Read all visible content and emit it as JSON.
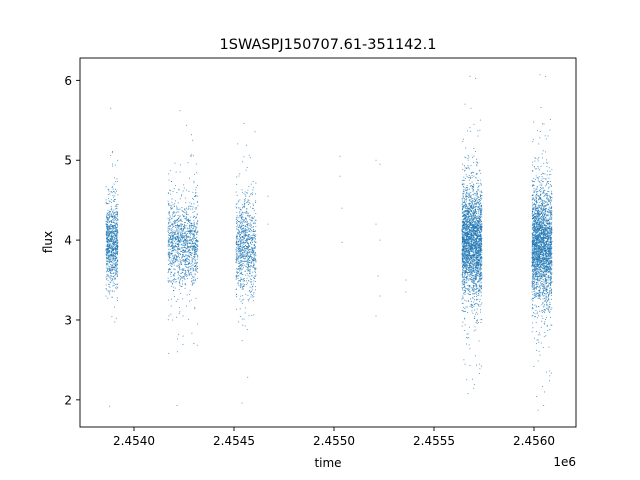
{
  "chart_data": {
    "type": "scatter",
    "title": "1SWASPJ150707.61-351142.1",
    "xlabel": "time",
    "ylabel": "flux",
    "x_offset_label": "1e6",
    "xlim": [
      2.45373,
      2.45621
    ],
    "ylim": [
      1.66,
      6.28
    ],
    "x_ticks": [
      2.454,
      2.4545,
      2.455,
      2.4555,
      2.456
    ],
    "x_tick_labels": [
      "2.4540",
      "2.4545",
      "2.4550",
      "2.4555",
      "2.4560"
    ],
    "y_ticks": [
      2,
      3,
      4,
      5,
      6
    ],
    "y_tick_labels": [
      "2",
      "3",
      "4",
      "5",
      "6"
    ],
    "grid": false,
    "marker_color": "#1f77b4",
    "series": [
      {
        "x_units": "1e6",
        "clusters": [
          {
            "x_range": [
              2.45386,
              2.45392
            ],
            "center": 3.97,
            "spread": 0.25,
            "min": 1.92,
            "max": 5.65,
            "count": 900
          },
          {
            "x_range": [
              2.45417,
              2.45432
            ],
            "center": 3.95,
            "spread": 0.27,
            "min": 1.93,
            "max": 5.62,
            "count": 1200
          },
          {
            "x_range": [
              2.45451,
              2.45461
            ],
            "center": 3.93,
            "spread": 0.28,
            "min": 1.96,
            "max": 5.46,
            "count": 900
          },
          {
            "x_range": [
              2.45564,
              2.45574
            ],
            "center": 3.97,
            "spread": 0.33,
            "min": 2.08,
            "max": 6.05,
            "count": 2600
          },
          {
            "x_range": [
              2.45599,
              2.45609
            ],
            "center": 3.93,
            "spread": 0.34,
            "min": 1.87,
            "max": 6.07,
            "count": 2600
          }
        ],
        "sparse_points": [
          [
            2.45503,
            5.05
          ],
          [
            2.45503,
            4.8
          ],
          [
            2.45504,
            3.97
          ],
          [
            2.45504,
            4.4
          ],
          [
            2.45521,
            5.0
          ],
          [
            2.45521,
            4.2
          ],
          [
            2.45521,
            3.05
          ],
          [
            2.45522,
            3.55
          ],
          [
            2.45523,
            4.95
          ],
          [
            2.45523,
            4.0
          ],
          [
            2.45523,
            3.3
          ],
          [
            2.45536,
            3.5
          ],
          [
            2.45536,
            3.35
          ],
          [
            2.45467,
            4.55
          ],
          [
            2.45467,
            4.2
          ]
        ]
      }
    ]
  }
}
